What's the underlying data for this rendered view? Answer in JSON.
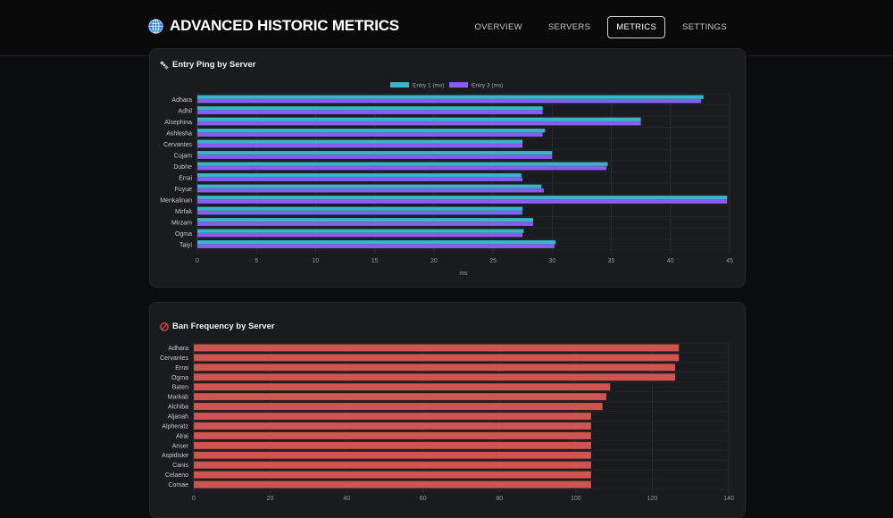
{
  "header": {
    "title": "ADVANCED HISTORIC METRICS",
    "nav": [
      {
        "label": "OVERVIEW",
        "active": false
      },
      {
        "label": "SERVERS",
        "active": false
      },
      {
        "label": "METRICS",
        "active": true
      },
      {
        "label": "SETTINGS",
        "active": false
      }
    ]
  },
  "colors": {
    "entry1": "#3ab4c8",
    "entry3": "#8a5cf5",
    "ban": "#d05450"
  },
  "chart_data": [
    {
      "type": "bar",
      "orientation": "horizontal",
      "title": "Entry Ping by Server",
      "title_icon": "satellite-icon",
      "categories": [
        "Adhara",
        "Adhil",
        "Alsephina",
        "Ashlesha",
        "Cervantes",
        "Cujam",
        "Dubhe",
        "Errai",
        "Fuyue",
        "Menkalinan",
        "Mirfak",
        "Mirzam",
        "Ogma",
        "Taiyi"
      ],
      "series": [
        {
          "name": "Entry 1 (ms)",
          "values": [
            42.8,
            29.2,
            37.5,
            29.4,
            27.5,
            30.0,
            34.7,
            27.4,
            29.1,
            44.8,
            27.5,
            28.4,
            27.6,
            30.3
          ]
        },
        {
          "name": "Entry 3 (ms)",
          "values": [
            42.6,
            29.2,
            37.5,
            29.2,
            27.5,
            30.0,
            34.6,
            27.5,
            29.3,
            44.8,
            27.5,
            28.4,
            27.5,
            30.2
          ]
        }
      ],
      "xlabel": "ms",
      "ylabel": "",
      "xlim": [
        0,
        45
      ],
      "xticks": [
        0,
        5,
        10,
        15,
        20,
        25,
        30,
        35,
        40,
        45
      ],
      "legend": "top-center",
      "grid": true
    },
    {
      "type": "bar",
      "orientation": "horizontal",
      "title": "Ban Frequency by Server",
      "title_icon": "no-entry-icon",
      "categories": [
        "Adhara",
        "Cervantes",
        "Errai",
        "Ogma",
        "Baten",
        "Markab",
        "Alchiba",
        "Aljanah",
        "Alpheratz",
        "Alrai",
        "Anser",
        "Aspidiske",
        "Canis",
        "Celaeno",
        "Comae"
      ],
      "series": [
        {
          "name": "",
          "values": [
            127,
            127,
            126,
            126,
            109,
            108,
            107,
            104,
            104,
            104,
            104,
            104,
            104,
            104,
            104
          ]
        }
      ],
      "xlabel": "",
      "ylabel": "",
      "xlim": [
        0,
        140
      ],
      "xticks": [
        0,
        20,
        40,
        60,
        80,
        100,
        120,
        140
      ],
      "grid": true
    }
  ]
}
